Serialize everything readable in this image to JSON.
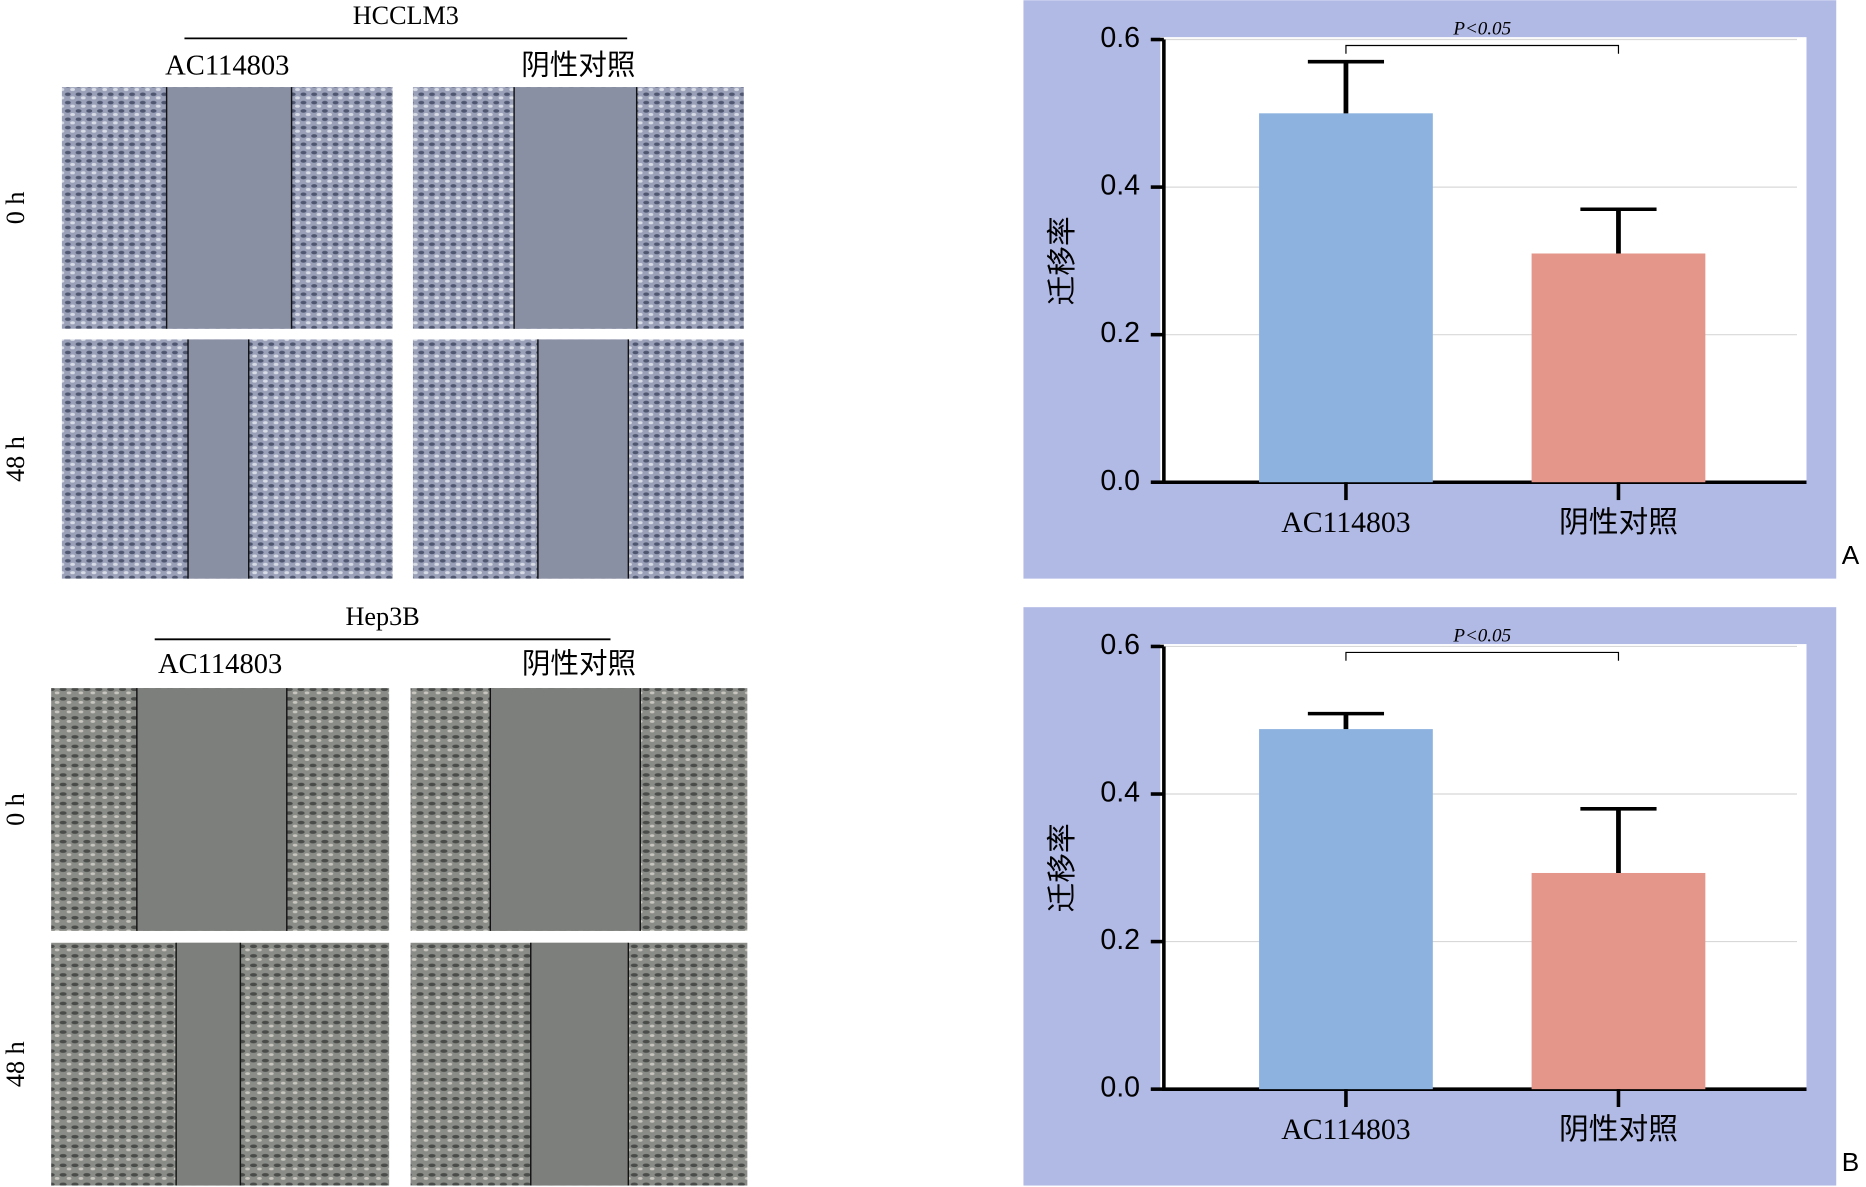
{
  "panels": [
    {
      "cell_line": "HCCLM3",
      "columns": [
        "AC114803",
        "阴性对照"
      ],
      "rows": [
        "0 h",
        "48 h"
      ]
    },
    {
      "cell_line": "Hep3B",
      "columns": [
        "AC114803",
        "阴性对照"
      ],
      "rows": [
        "0 h",
        "48 h"
      ]
    }
  ],
  "chart_data": [
    {
      "type": "bar",
      "panel_label": "A",
      "ylabel": "迁移率",
      "categories": [
        "AC114803",
        "阴性对照"
      ],
      "values": [
        0.5,
        0.31
      ],
      "errors": [
        0.07,
        0.06
      ],
      "colors": [
        "#8db2e0",
        "#e5968a"
      ],
      "ylim": [
        0,
        0.6
      ],
      "yticks": [
        {
          "value": 0,
          "label": "0.0"
        },
        0.2,
        0.4,
        0.6
      ],
      "grid": true,
      "annotation": "P<0.05"
    },
    {
      "type": "bar",
      "panel_label": "B",
      "ylabel": "迁移率",
      "categories": [
        "AC114803",
        "阴性对照"
      ],
      "values": [
        0.488,
        0.293
      ],
      "errors": [
        0.021,
        0.087
      ],
      "colors": [
        "#8db2e0",
        "#e5968a"
      ],
      "ylim": [
        0,
        0.6
      ],
      "yticks": [
        {
          "value": 0,
          "label": "0.0"
        },
        0.2,
        0.4,
        0.6
      ],
      "grid": true,
      "annotation": "P<0.05"
    }
  ]
}
